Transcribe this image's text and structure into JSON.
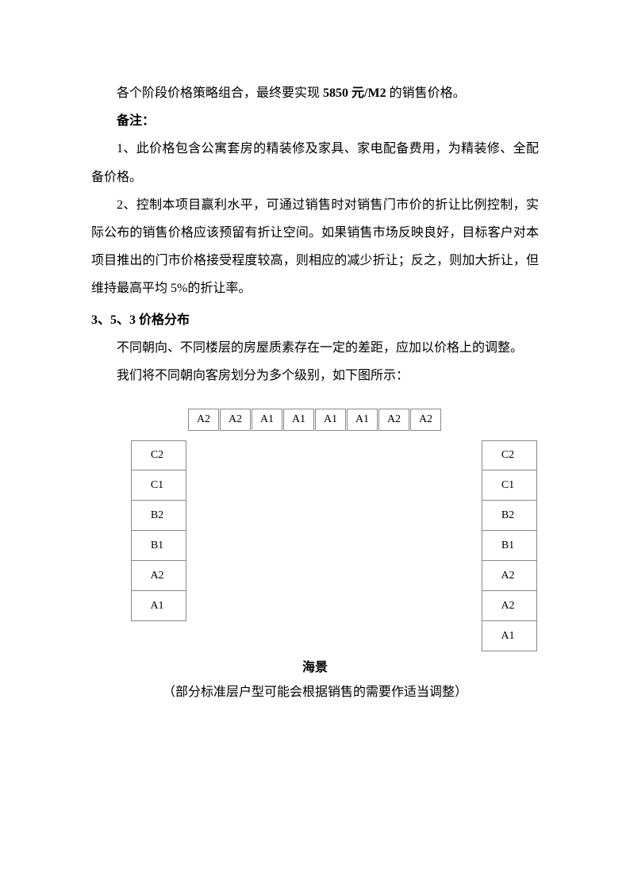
{
  "p1_a": "各个阶段价格策略组合，最终要实现 ",
  "p1_b": "5850 元/M2",
  "p1_c": " 的销售价格。",
  "p2": "备注：",
  "p3": "1、此价格包含公寓套房的精装修及家具、家电配备费用，为精装修、全配备价格。",
  "p4": "2、控制本项目赢利水平，可通过销售时对销售门市价的折让比例控制，实际公布的销售价格应该预留有折让空间。如果销售市场反映良好，目标客户对本项目推出的门市价格接受程度较高，则相应的减少折让；反之，则加大折让，但维持最高平均 5%的折让率。",
  "h1": "3、5、3  价格分布",
  "p5": "不同朝向、不同楼层的房屋质素存在一定的差距，应加以价格上的调整。",
  "p6": "我们将不同朝向客房划分为多个级别，如下图所示：",
  "diagram": {
    "top_row": [
      "A2",
      "A2",
      "A1",
      "A1",
      "A1",
      "A1",
      "A2",
      "A2"
    ],
    "left_col": [
      "C2",
      "C1",
      "B2",
      "B1",
      "A2",
      "A1"
    ],
    "right_col": [
      "C2",
      "C1",
      "B2",
      "B1",
      "A2",
      "A2",
      "A1"
    ],
    "sea_label": "海景",
    "cell_border_color": "#888888",
    "background_color": "#ffffff",
    "font_size": 14
  },
  "note": "（部分标准层户型可能会根据销售的需要作适当调整）"
}
